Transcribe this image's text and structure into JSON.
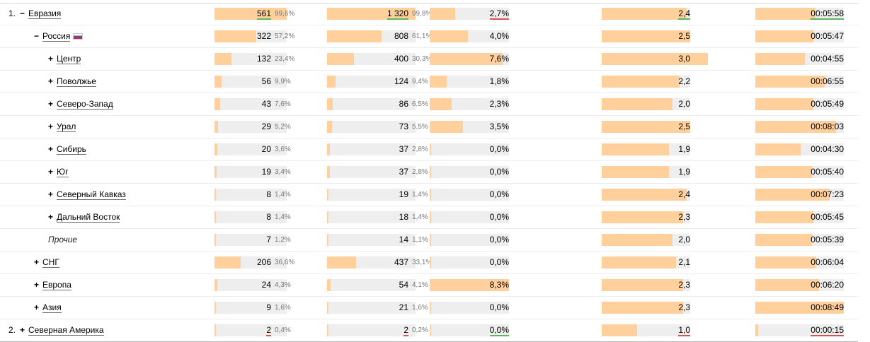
{
  "columns": [
    {
      "key": "visits",
      "type": "count_pct",
      "max": 561
    },
    {
      "key": "views",
      "type": "count_pct",
      "max": 1320
    },
    {
      "key": "rate",
      "type": "plain",
      "max": 8.3
    },
    {
      "key": "depth",
      "type": "plain",
      "max": 2.5
    },
    {
      "key": "time",
      "type": "plain",
      "max": 529
    }
  ],
  "rows": [
    {
      "id": "evrazia",
      "level": 0,
      "num": "1.",
      "toggle": "−",
      "label": "Евразия",
      "highlight": true,
      "visits": {
        "value": "561",
        "pct": "99,6%",
        "amount": 561
      },
      "views": {
        "value": "1 320",
        "pct": "99,8%",
        "amount": 1320
      },
      "rate": {
        "value": "2,7%",
        "amount": 2.7
      },
      "depth": {
        "value": "2,4",
        "amount": 2.4
      },
      "time": {
        "value": "00:05:58",
        "amount": 358
      }
    },
    {
      "id": "rossiya",
      "level": 1,
      "toggle": "−",
      "label": "Россия",
      "flag": true,
      "visits": {
        "value": "322",
        "pct": "57,2%",
        "amount": 322
      },
      "views": {
        "value": "808",
        "pct": "61,1%",
        "amount": 808
      },
      "rate": {
        "value": "4,0%",
        "amount": 4.0
      },
      "depth": {
        "value": "2,5",
        "amount": 2.5
      },
      "time": {
        "value": "00:05:47",
        "amount": 347
      }
    },
    {
      "id": "centr",
      "level": 2,
      "toggle": "+",
      "label": "Центр",
      "visits": {
        "value": "132",
        "pct": "23,4%",
        "amount": 132
      },
      "views": {
        "value": "400",
        "pct": "30,3%",
        "amount": 400
      },
      "rate": {
        "value": "7,6%",
        "amount": 7.6
      },
      "depth": {
        "value": "3,0",
        "amount": 3.0
      },
      "time": {
        "value": "00:04:55",
        "amount": 295
      }
    },
    {
      "id": "povolzhe",
      "level": 2,
      "toggle": "+",
      "label": "Поволжье",
      "visits": {
        "value": "56",
        "pct": "9,9%",
        "amount": 56
      },
      "views": {
        "value": "124",
        "pct": "9,4%",
        "amount": 124
      },
      "rate": {
        "value": "1,8%",
        "amount": 1.8
      },
      "depth": {
        "value": "2,2",
        "amount": 2.2
      },
      "time": {
        "value": "00:06:55",
        "amount": 415
      }
    },
    {
      "id": "severo-zapad",
      "level": 2,
      "toggle": "+",
      "label": "Северо-Запад",
      "visits": {
        "value": "43",
        "pct": "7,6%",
        "amount": 43
      },
      "views": {
        "value": "86",
        "pct": "6,5%",
        "amount": 86
      },
      "rate": {
        "value": "2,3%",
        "amount": 2.3
      },
      "depth": {
        "value": "2,0",
        "amount": 2.0
      },
      "time": {
        "value": "00:05:49",
        "amount": 349
      }
    },
    {
      "id": "ural",
      "level": 2,
      "toggle": "+",
      "label": "Урал",
      "visits": {
        "value": "29",
        "pct": "5,2%",
        "amount": 29
      },
      "views": {
        "value": "73",
        "pct": "5,5%",
        "amount": 73
      },
      "rate": {
        "value": "3,5%",
        "amount": 3.5
      },
      "depth": {
        "value": "2,5",
        "amount": 2.5
      },
      "time": {
        "value": "00:08:03",
        "amount": 483
      }
    },
    {
      "id": "sibir",
      "level": 2,
      "toggle": "+",
      "label": "Сибирь",
      "visits": {
        "value": "20",
        "pct": "3,6%",
        "amount": 20
      },
      "views": {
        "value": "37",
        "pct": "2,8%",
        "amount": 37
      },
      "rate": {
        "value": "0,0%",
        "amount": 0
      },
      "depth": {
        "value": "1,9",
        "amount": 1.9
      },
      "time": {
        "value": "00:04:30",
        "amount": 270
      }
    },
    {
      "id": "yug",
      "level": 2,
      "toggle": "+",
      "label": "Юг",
      "visits": {
        "value": "19",
        "pct": "3,4%",
        "amount": 19
      },
      "views": {
        "value": "37",
        "pct": "2,8%",
        "amount": 37
      },
      "rate": {
        "value": "0,0%",
        "amount": 0
      },
      "depth": {
        "value": "1,9",
        "amount": 1.9
      },
      "time": {
        "value": "00:05:40",
        "amount": 340
      }
    },
    {
      "id": "sev-kavkaz",
      "level": 2,
      "toggle": "+",
      "label": "Северный Кавказ",
      "visits": {
        "value": "8",
        "pct": "1,4%",
        "amount": 8
      },
      "views": {
        "value": "19",
        "pct": "1,4%",
        "amount": 19
      },
      "rate": {
        "value": "0,0%",
        "amount": 0
      },
      "depth": {
        "value": "2,4",
        "amount": 2.4
      },
      "time": {
        "value": "00:07:23",
        "amount": 443
      }
    },
    {
      "id": "dalniy-vostok",
      "level": 2,
      "toggle": "+",
      "label": "Дальний Восток",
      "visits": {
        "value": "8",
        "pct": "1,4%",
        "amount": 8
      },
      "views": {
        "value": "18",
        "pct": "1,4%",
        "amount": 18
      },
      "rate": {
        "value": "0,0%",
        "amount": 0
      },
      "depth": {
        "value": "2,3",
        "amount": 2.3
      },
      "time": {
        "value": "00:05:45",
        "amount": 345
      }
    },
    {
      "id": "prochie",
      "level": 2,
      "toggle": "",
      "label": "Прочие",
      "other": true,
      "visits": {
        "value": "7",
        "pct": "1,2%",
        "amount": 7
      },
      "views": {
        "value": "14",
        "pct": "1,1%",
        "amount": 14
      },
      "rate": {
        "value": "0,0%",
        "amount": 0
      },
      "depth": {
        "value": "2,0",
        "amount": 2.0
      },
      "time": {
        "value": "00:05:39",
        "amount": 339
      }
    },
    {
      "id": "sng",
      "level": 1,
      "toggle": "+",
      "label": "СНГ",
      "visits": {
        "value": "206",
        "pct": "36,6%",
        "amount": 206
      },
      "views": {
        "value": "437",
        "pct": "33,1%",
        "amount": 437
      },
      "rate": {
        "value": "0,0%",
        "amount": 0
      },
      "depth": {
        "value": "2,1",
        "amount": 2.1
      },
      "time": {
        "value": "00:06:04",
        "amount": 364
      }
    },
    {
      "id": "evropa",
      "level": 1,
      "toggle": "+",
      "label": "Европа",
      "visits": {
        "value": "24",
        "pct": "4,3%",
        "amount": 24
      },
      "views": {
        "value": "54",
        "pct": "4,1%",
        "amount": 54
      },
      "rate": {
        "value": "8,3%",
        "amount": 8.3
      },
      "depth": {
        "value": "2,3",
        "amount": 2.3
      },
      "time": {
        "value": "00:06:20",
        "amount": 380
      }
    },
    {
      "id": "aziya",
      "level": 1,
      "toggle": "+",
      "label": "Азия",
      "visits": {
        "value": "9",
        "pct": "1,6%",
        "amount": 9
      },
      "views": {
        "value": "21",
        "pct": "1,6%",
        "amount": 21
      },
      "rate": {
        "value": "0,0%",
        "amount": 0
      },
      "depth": {
        "value": "2,3",
        "amount": 2.3
      },
      "time": {
        "value": "00:08:49",
        "amount": 529
      }
    },
    {
      "id": "sev-amerika",
      "level": 0,
      "num": "2.",
      "toggle": "+",
      "label": "Северная Америка",
      "highlight": true,
      "last": true,
      "visits": {
        "value": "2",
        "pct": "0,4%",
        "amount": 2
      },
      "views": {
        "value": "2",
        "pct": "0,2%",
        "amount": 2
      },
      "rate": {
        "value": "0,0%",
        "amount": 0
      },
      "depth": {
        "value": "1,0",
        "amount": 1.0
      },
      "time": {
        "value": "00:00:15",
        "amount": 15
      }
    }
  ],
  "highlight_colors": {
    "evrazia": {
      "visits": "#5cb85c",
      "views": "#5cb85c",
      "rate": "#d9534f",
      "depth": "#5cb85c",
      "time": "#5cb85c"
    },
    "sev-amerika": {
      "visits": "#d9534f",
      "views": "#d9534f",
      "rate": "#5cb85c",
      "depth": "#d9534f",
      "time": "#d9534f"
    }
  },
  "colors": {
    "bar_fill": "#ffcf9c",
    "bar_bg": "#eeeeee",
    "up": "#5cb85c",
    "down": "#d9534f"
  }
}
